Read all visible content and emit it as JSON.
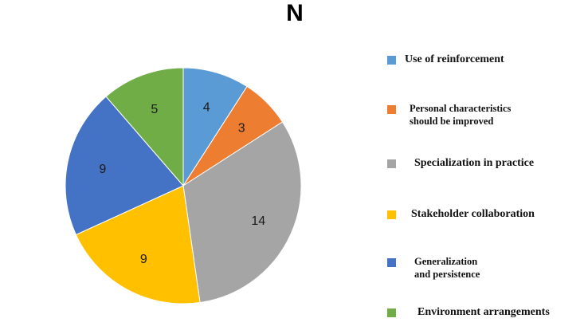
{
  "chart_data": {
    "type": "pie",
    "title": "N",
    "categories": [
      "Use of reinforcement",
      "Personal characteristics should be improved",
      "Specialization in practice",
      "Stakeholder collaboration",
      "Generalization and persistence",
      "Environment arrangements"
    ],
    "values": [
      4,
      3,
      14,
      9,
      9,
      5
    ],
    "colors": [
      "#5b9bd5",
      "#ed7d31",
      "#a5a5a5",
      "#ffc000",
      "#4472c4",
      "#70ad47"
    ],
    "legend_labels": [
      "Use of reinforcement",
      "Personal characteristics\nshould be improved",
      "Specialization in practice",
      "Stakeholder collaboration",
      "Generalization\nand persistence",
      "Environment arrangements"
    ],
    "legend_position": "right",
    "start_angle": "12 o'clock",
    "direction": "clockwise"
  }
}
